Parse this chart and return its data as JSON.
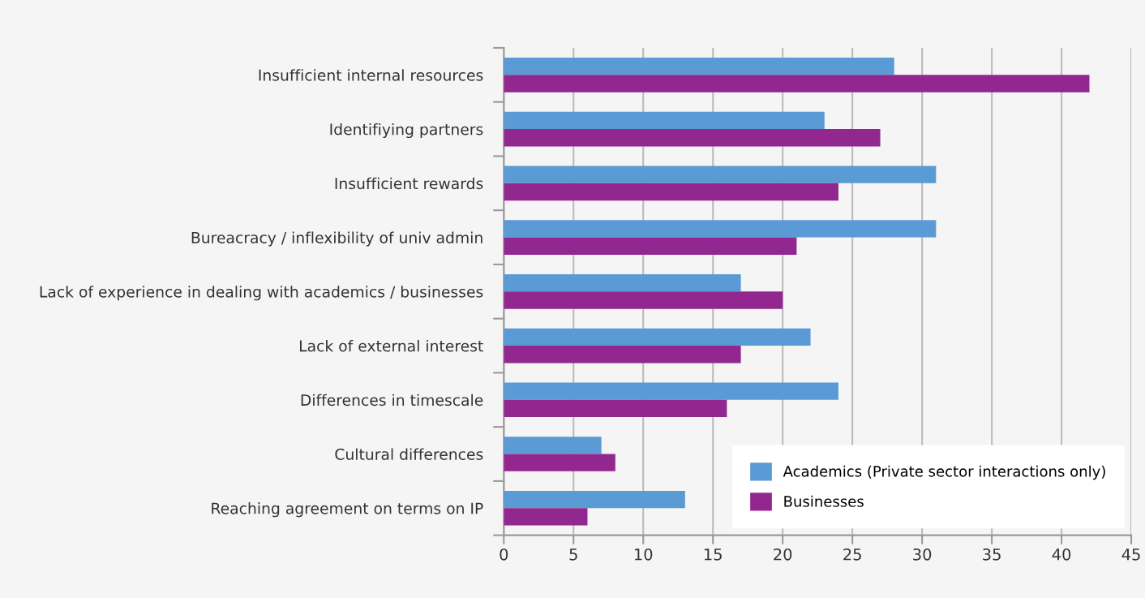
{
  "chart_data": {
    "type": "bar",
    "orientation": "horizontal",
    "categories": [
      "Insufficient internal resources",
      "Identifiying partners",
      "Insufficient rewards",
      "Bureacracy / inflexibility of univ admin",
      "Lack of experience in dealing with academics / businesses",
      "Lack of external interest",
      "Differences in timescale",
      "Cultural differences",
      "Reaching agreement on terms on IP"
    ],
    "series": [
      {
        "name": "Academics (Private sector interactions only)",
        "color": "#5b9bd5",
        "values": [
          28,
          23,
          31,
          31,
          17,
          22,
          24,
          7,
          13
        ]
      },
      {
        "name": "Businesses",
        "color": "#92278f",
        "values": [
          42,
          27,
          24,
          21,
          20,
          17,
          16,
          8,
          6
        ]
      }
    ],
    "xlim": [
      0,
      45
    ],
    "xticks": [
      0,
      5,
      10,
      15,
      20,
      25,
      30,
      35,
      40,
      45
    ],
    "grid": "x",
    "legend": "bottom right"
  }
}
